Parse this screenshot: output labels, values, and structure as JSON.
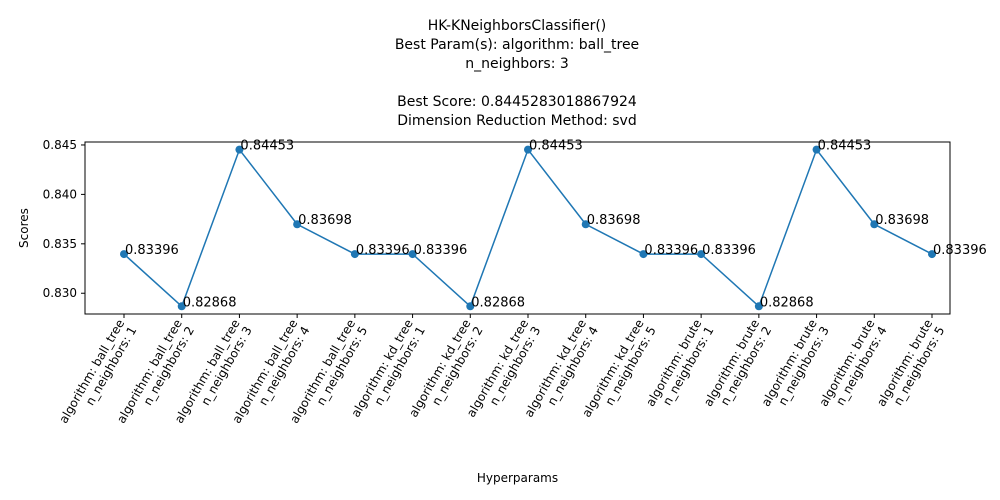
{
  "chart_data": {
    "type": "line",
    "title_lines": [
      "HK-KNeighborsClassifier()",
      "Best Param(s): algorithm: ball_tree",
      "n_neighbors: 3",
      "",
      "Best Score: 0.8445283018867924",
      "Dimension Reduction Method: svd"
    ],
    "xlabel": "Hyperparams",
    "ylabel": "Scores",
    "categories": [
      [
        "algorithm: ball_tree",
        "n_neighbors: 1"
      ],
      [
        "algorithm: ball_tree",
        "n_neighbors: 2"
      ],
      [
        "algorithm: ball_tree",
        "n_neighbors: 3"
      ],
      [
        "algorithm: ball_tree",
        "n_neighbors: 4"
      ],
      [
        "algorithm: ball_tree",
        "n_neighbors: 5"
      ],
      [
        "algorithm: kd_tree",
        "n_neighbors: 1"
      ],
      [
        "algorithm: kd_tree",
        "n_neighbors: 2"
      ],
      [
        "algorithm: kd_tree",
        "n_neighbors: 3"
      ],
      [
        "algorithm: kd_tree",
        "n_neighbors: 4"
      ],
      [
        "algorithm: kd_tree",
        "n_neighbors: 5"
      ],
      [
        "algorithm: brute",
        "n_neighbors: 1"
      ],
      [
        "algorithm: brute",
        "n_neighbors: 2"
      ],
      [
        "algorithm: brute",
        "n_neighbors: 3"
      ],
      [
        "algorithm: brute",
        "n_neighbors: 4"
      ],
      [
        "algorithm: brute",
        "n_neighbors: 5"
      ]
    ],
    "values": [
      0.83396,
      0.82868,
      0.84453,
      0.83698,
      0.83396,
      0.83396,
      0.82868,
      0.84453,
      0.83698,
      0.83396,
      0.83396,
      0.82868,
      0.84453,
      0.83698,
      0.83396
    ],
    "data_labels": [
      "0.83396",
      "0.82868",
      "0.84453",
      "0.83698",
      "0.83396",
      "0.83396",
      "0.82868",
      "0.84453",
      "0.83698",
      "0.83396",
      "0.83396",
      "0.82868",
      "0.84453",
      "0.83698",
      "0.83396"
    ],
    "ylim": [
      0.8279,
      0.8453
    ],
    "yticks": [
      0.83,
      0.835,
      0.84,
      0.845
    ],
    "ytick_labels": [
      "0.830",
      "0.835",
      "0.840",
      "0.845"
    ],
    "grid": false,
    "color": "#1f77b4"
  }
}
